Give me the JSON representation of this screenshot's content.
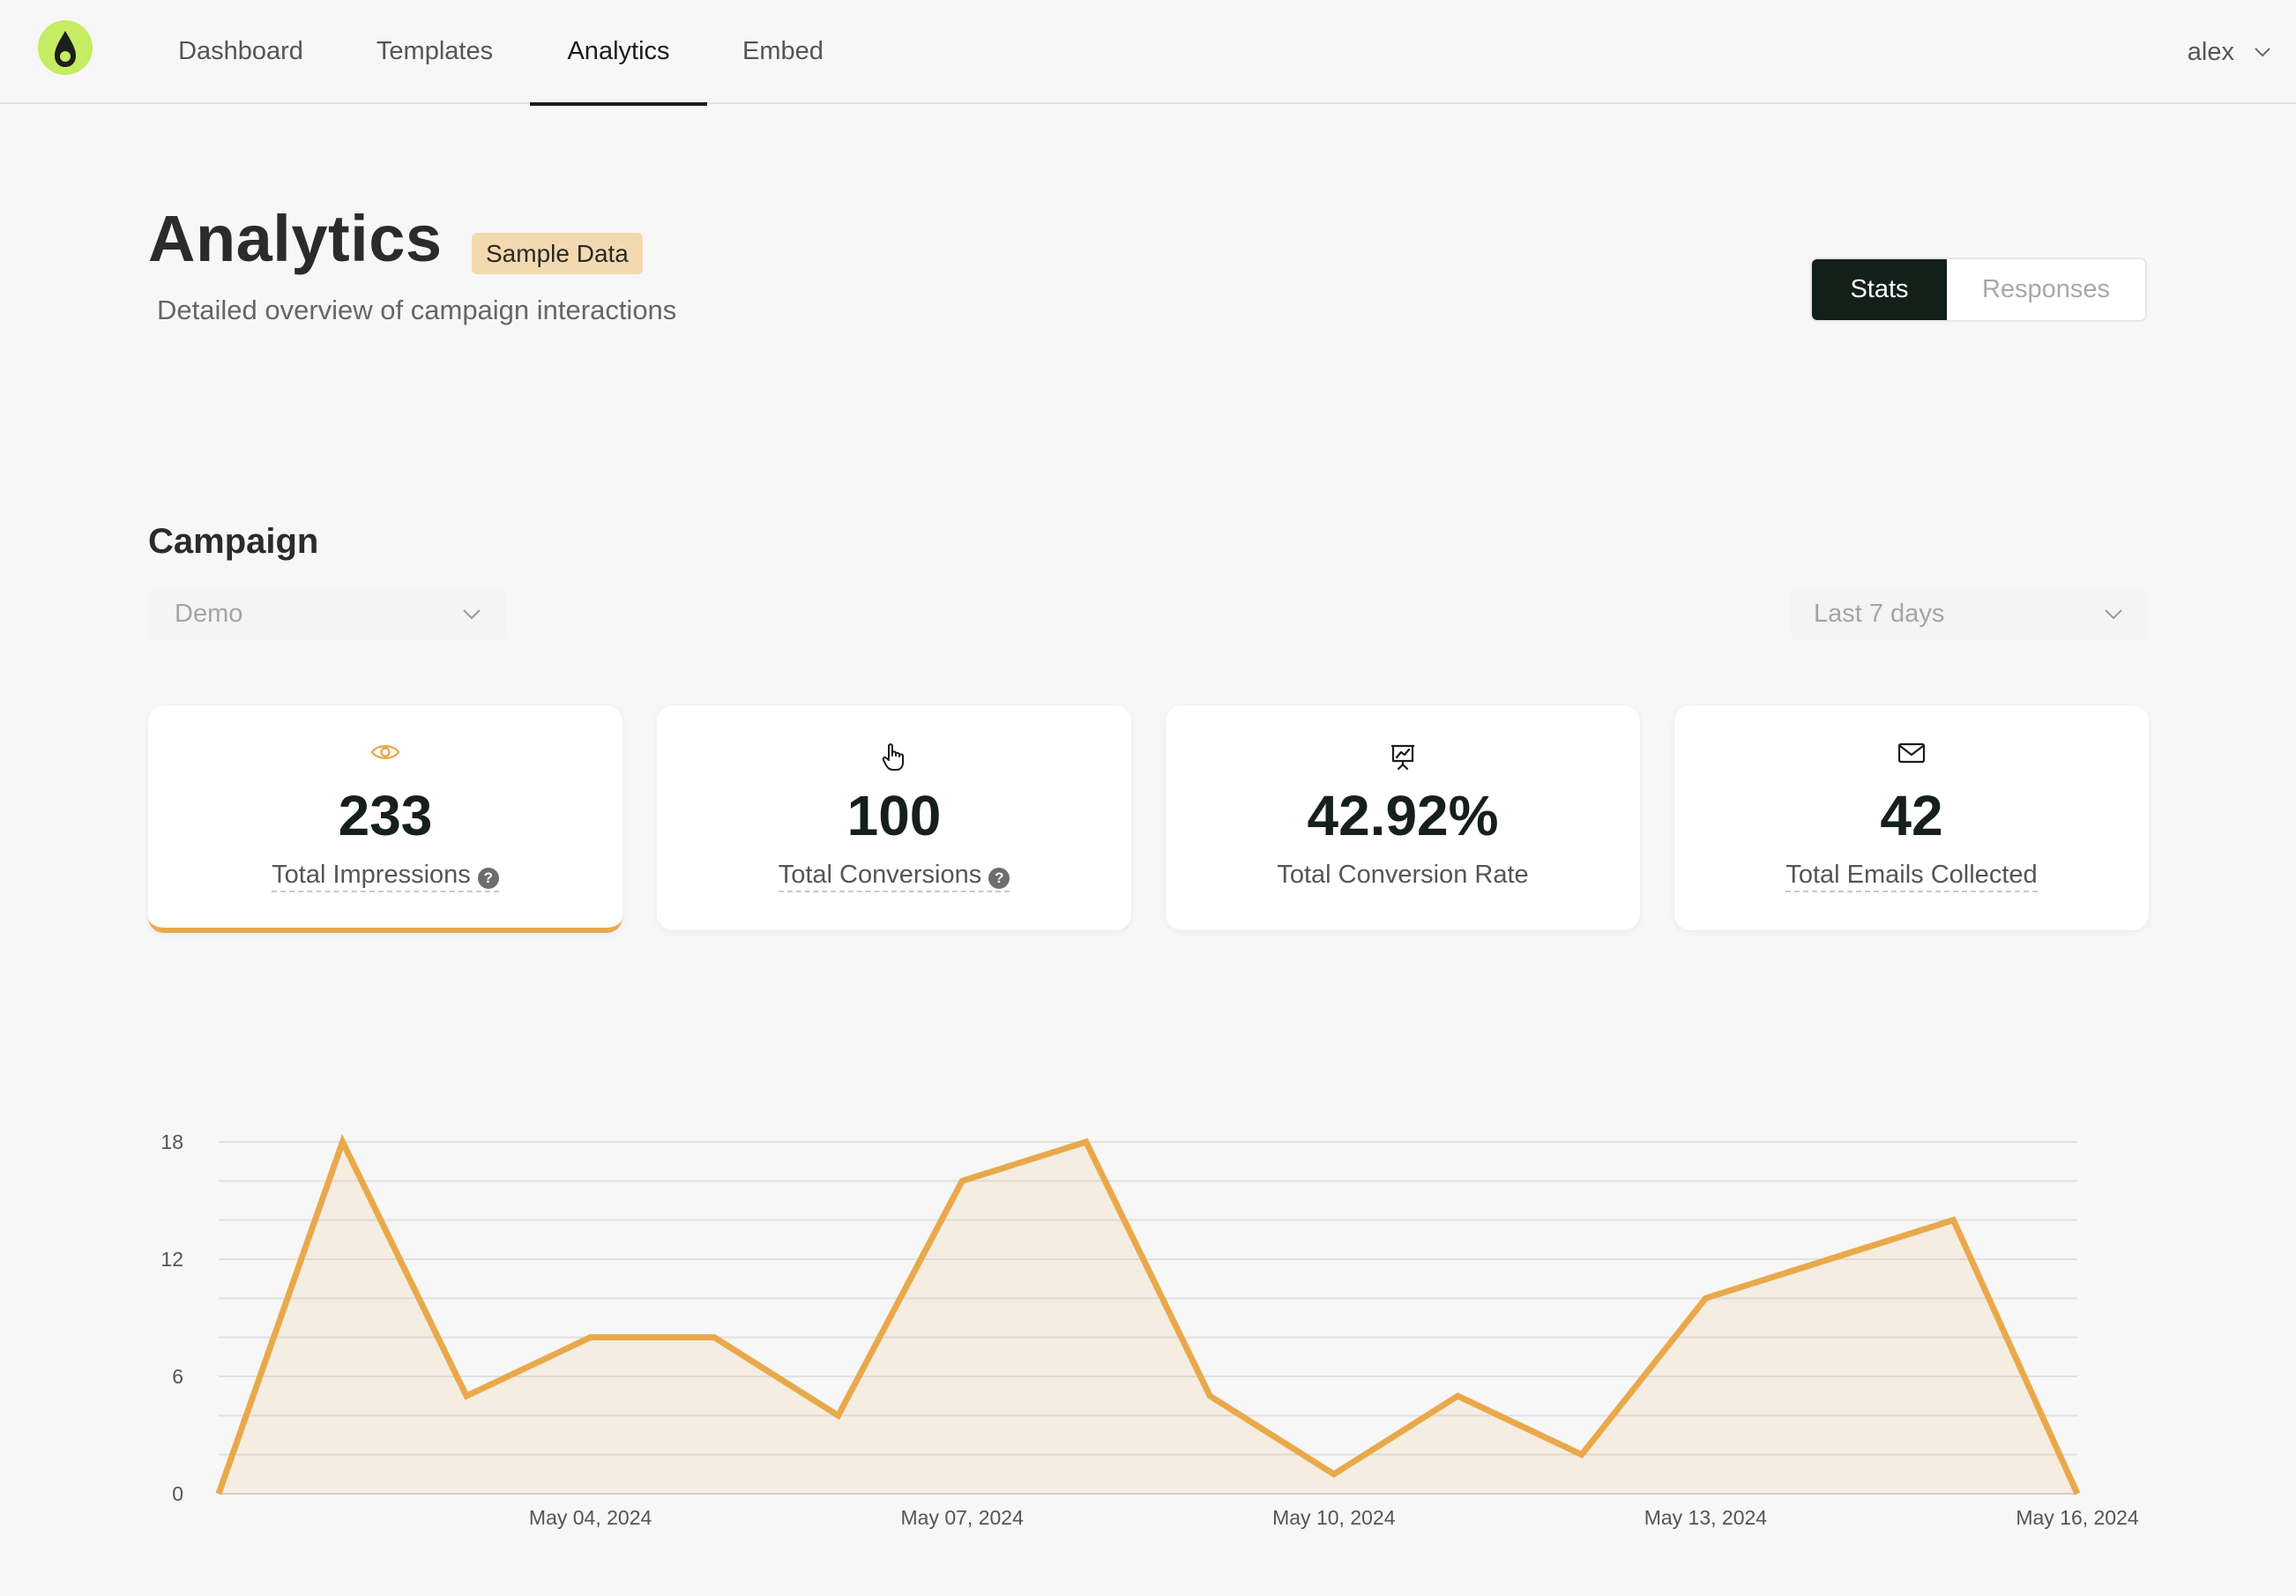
{
  "nav": {
    "items": [
      "Dashboard",
      "Templates",
      "Analytics",
      "Embed"
    ],
    "active": "Analytics",
    "user": "alex"
  },
  "header": {
    "title": "Analytics",
    "badge": "Sample Data",
    "subtitle": "Detailed overview of campaign interactions",
    "view_tabs": [
      "Stats",
      "Responses"
    ],
    "active_tab": "Stats"
  },
  "campaign": {
    "section_title": "Campaign",
    "campaign_select": "Demo",
    "range_select": "Last 7 days"
  },
  "stats": [
    {
      "icon": "eye-icon",
      "value": "233",
      "label": "Total Impressions",
      "help": "?"
    },
    {
      "icon": "pointer-hand-icon",
      "value": "100",
      "label": "Total Conversions",
      "help": "?"
    },
    {
      "icon": "presentation-chart-icon",
      "value": "42.92%",
      "label": "Total Conversion Rate"
    },
    {
      "icon": "envelope-icon",
      "value": "42",
      "label": "Total Emails Collected"
    }
  ],
  "colors": {
    "accent": "#e9a94b",
    "logo": "#c5ec63",
    "dark": "#13201a",
    "badge": "#f4d9b0"
  },
  "chart_data": {
    "type": "area",
    "x": [
      "May 01, 2024",
      "May 02, 2024",
      "May 03, 2024",
      "May 04, 2024",
      "May 05, 2024",
      "May 06, 2024",
      "May 07, 2024",
      "May 08, 2024",
      "May 09, 2024",
      "May 10, 2024",
      "May 11, 2024",
      "May 12, 2024",
      "May 13, 2024",
      "May 14, 2024",
      "May 15, 2024",
      "May 16, 2024"
    ],
    "values": [
      0,
      18,
      5,
      8,
      8,
      4,
      16,
      18,
      5,
      1,
      5,
      2,
      10,
      12,
      14,
      0
    ],
    "xticks": [
      "May 04, 2024",
      "May 07, 2024",
      "May 10, 2024",
      "May 13, 2024",
      "May 16, 2024"
    ],
    "yticks": [
      0,
      6,
      12,
      18
    ],
    "ylim": [
      0,
      18
    ],
    "grid": true,
    "color": "#e9a94b"
  }
}
